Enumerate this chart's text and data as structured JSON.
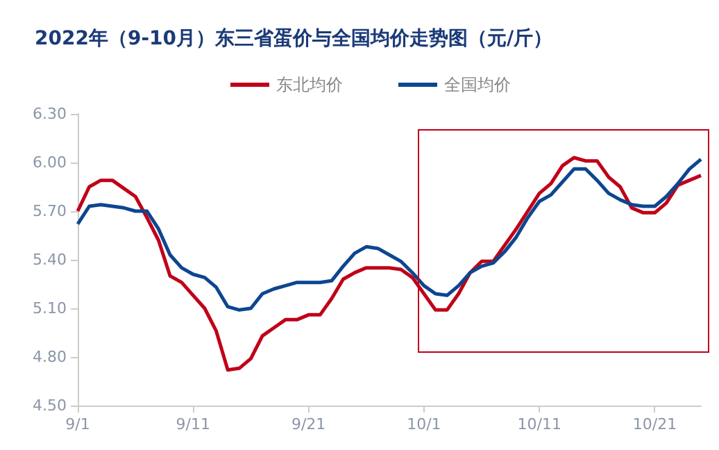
{
  "chart_data": {
    "type": "line",
    "title": "2022年（9-10月）东三省蛋价与全国均价走势图（元/斤）",
    "categories": [
      "9/1",
      null,
      null,
      null,
      null,
      null,
      null,
      null,
      null,
      null,
      "9/11",
      null,
      null,
      null,
      null,
      null,
      null,
      null,
      null,
      null,
      "9/21",
      null,
      null,
      null,
      null,
      null,
      null,
      null,
      null,
      null,
      "10/1",
      null,
      null,
      null,
      null,
      null,
      null,
      null,
      null,
      null,
      "10/11",
      null,
      null,
      null,
      null,
      null,
      null,
      null,
      null,
      null,
      "10/21",
      null,
      null,
      null,
      null
    ],
    "series": [
      {
        "name": "东北均价",
        "color": "#c00018",
        "values": [
          5.7,
          5.85,
          5.89,
          5.89,
          5.84,
          5.79,
          5.66,
          5.52,
          5.3,
          5.26,
          5.18,
          5.1,
          4.96,
          4.72,
          4.73,
          4.79,
          4.93,
          4.98,
          5.03,
          5.03,
          5.06,
          5.06,
          5.16,
          5.28,
          5.32,
          5.35,
          5.35,
          5.35,
          5.34,
          5.29,
          5.19,
          5.09,
          5.09,
          5.19,
          5.32,
          5.39,
          5.39,
          5.49,
          5.59,
          5.7,
          5.81,
          5.87,
          5.98,
          6.03,
          6.01,
          6.01,
          5.91,
          5.85,
          5.72,
          5.69,
          5.69,
          5.75,
          5.86,
          5.89,
          5.92
        ]
      },
      {
        "name": "全国均价",
        "color": "#0d4690",
        "values": [
          5.62,
          5.73,
          5.74,
          5.73,
          5.72,
          5.7,
          5.7,
          5.59,
          5.43,
          5.35,
          5.31,
          5.29,
          5.23,
          5.11,
          5.09,
          5.1,
          5.19,
          5.22,
          5.24,
          5.26,
          5.26,
          5.26,
          5.27,
          5.36,
          5.44,
          5.48,
          5.47,
          5.43,
          5.39,
          5.32,
          5.24,
          5.19,
          5.18,
          5.24,
          5.32,
          5.36,
          5.38,
          5.45,
          5.54,
          5.66,
          5.76,
          5.8,
          5.88,
          5.96,
          5.96,
          5.89,
          5.81,
          5.77,
          5.74,
          5.73,
          5.73,
          5.79,
          5.87,
          5.96,
          6.02
        ]
      }
    ],
    "ylim": [
      4.5,
      6.3
    ],
    "yticks": [
      {
        "value": 4.5,
        "label": "4.50"
      },
      {
        "value": 4.8,
        "label": "4.80"
      },
      {
        "value": 5.1,
        "label": "5.10"
      },
      {
        "value": 5.4,
        "label": "5.40"
      },
      {
        "value": 5.7,
        "label": "5.70"
      },
      {
        "value": 6.0,
        "label": "6.00"
      },
      {
        "value": 6.3,
        "label": "6.30"
      }
    ],
    "grid": false,
    "legend": "top",
    "marker": "none",
    "line_style": "solid"
  }
}
